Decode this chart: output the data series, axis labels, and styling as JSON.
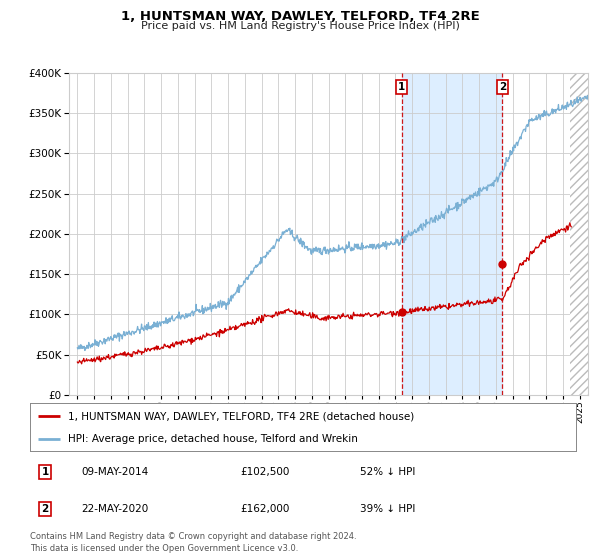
{
  "title": "1, HUNTSMAN WAY, DAWLEY, TELFORD, TF4 2RE",
  "subtitle": "Price paid vs. HM Land Registry's House Price Index (HPI)",
  "legend_red": "1, HUNTSMAN WAY, DAWLEY, TELFORD, TF4 2RE (detached house)",
  "legend_blue": "HPI: Average price, detached house, Telford and Wrekin",
  "transaction1_date": "09-MAY-2014",
  "transaction1_price": 102500,
  "transaction1_pct": "52% ↓ HPI",
  "transaction2_date": "22-MAY-2020",
  "transaction2_price": 162000,
  "transaction2_pct": "39% ↓ HPI",
  "footnote": "Contains HM Land Registry data © Crown copyright and database right 2024.\nThis data is licensed under the Open Government Licence v3.0.",
  "year_start": 1995,
  "year_end": 2025,
  "xlim_min": 1994.5,
  "xlim_max": 2025.5,
  "ylim_min": 0,
  "ylim_max": 400000,
  "red_color": "#cc0000",
  "blue_color": "#7ab0d4",
  "highlight_color": "#ddeeff",
  "hatch_color": "#bbbbbb",
  "transaction1_year": 2014.37,
  "transaction2_year": 2020.38,
  "future_start": 2024.4
}
